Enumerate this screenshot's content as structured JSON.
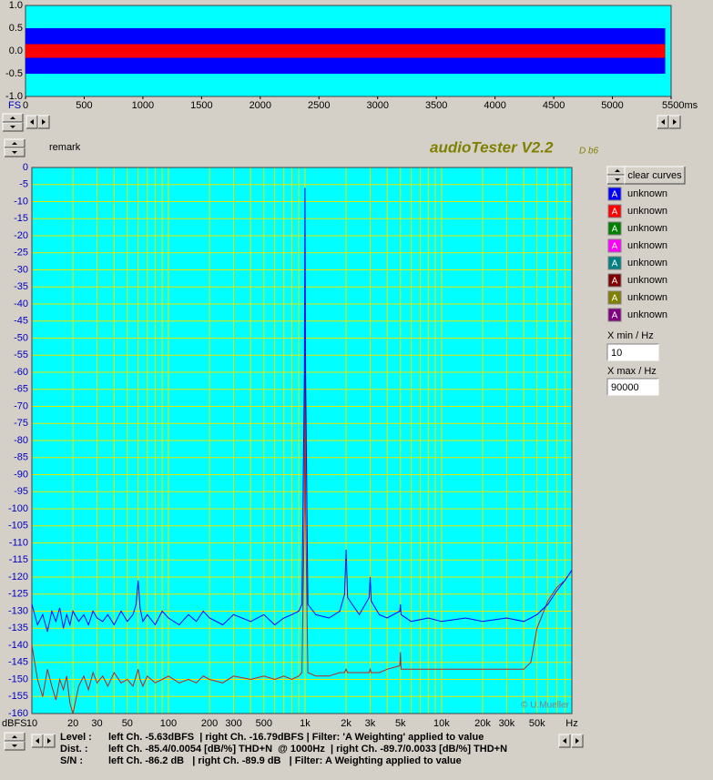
{
  "chart_data": [
    {
      "type": "band",
      "x_label": "FS",
      "background": "#00ffff",
      "x": [
        0,
        5450
      ],
      "series": [
        {
          "color": "#0000ff",
          "high": [
            0.5,
            0.5
          ],
          "low": [
            -0.5,
            -0.5
          ]
        },
        {
          "color": "#ff0000",
          "high": [
            0.15,
            0.15
          ],
          "low": [
            -0.15,
            -0.15
          ]
        }
      ],
      "xlim": [
        0,
        5500
      ],
      "ylim": [
        -1,
        1
      ],
      "xticks": [
        0,
        500,
        1000,
        1500,
        2000,
        2500,
        3000,
        3500,
        4000,
        4500,
        5000,
        {
          "value": 5500,
          "label": "5500ms"
        }
      ],
      "yticks": [
        {
          "value": 1,
          "label": "1.0"
        },
        0.5,
        {
          "value": 0,
          "label": "0.0"
        },
        -0.5,
        {
          "value": -1,
          "label": "-1.0"
        }
      ]
    },
    {
      "type": "line",
      "y_label": "dBFS",
      "x_label": "Hz",
      "annotation": "© U.Mueller",
      "background": "#00ffff",
      "log_x": true,
      "grid": true,
      "grid_color": "#e6e600",
      "x": [
        10,
        11,
        12,
        13,
        14,
        15,
        16,
        17,
        18,
        19,
        20,
        22,
        24,
        26,
        28,
        30,
        33,
        36,
        40,
        45,
        50,
        55,
        58,
        60,
        62,
        65,
        70,
        80,
        90,
        100,
        120,
        140,
        160,
        180,
        200,
        250,
        300,
        400,
        500,
        600,
        700,
        800,
        900,
        950,
        990,
        1000,
        1010,
        1050,
        1200,
        1500,
        1800,
        1950,
        2000,
        2050,
        2500,
        2950,
        3000,
        3050,
        3500,
        4000,
        4950,
        5000,
        5050,
        6000,
        8000,
        10000,
        15000,
        20000,
        30000,
        40000,
        45000,
        50000,
        60000,
        70000,
        80000,
        90000
      ],
      "series": [
        {
          "color": "#0000ff",
          "values": [
            -128,
            -134,
            -131,
            -136,
            -130,
            -133,
            -129,
            -135,
            -131,
            -134,
            -130,
            -133,
            -131,
            -134,
            -130,
            -132,
            -133,
            -131,
            -134,
            -130,
            -133,
            -131,
            -128,
            -121,
            -129,
            -133,
            -131,
            -134,
            -130,
            -132,
            -134,
            -131,
            -133,
            -130,
            -132,
            -134,
            -131,
            -133,
            -131,
            -134,
            -132,
            -131,
            -130,
            -128,
            -60,
            -6,
            -60,
            -128,
            -131,
            -132,
            -130,
            -125,
            -112,
            -126,
            -131,
            -126,
            -120,
            -127,
            -131,
            -132,
            -130,
            -128,
            -131,
            -133,
            -132,
            -133,
            -132,
            -133,
            -132,
            -133,
            -132,
            -131,
            -128,
            -124,
            -121,
            -118
          ]
        },
        {
          "color": "#c02020",
          "values": [
            -140,
            -150,
            -155,
            -147,
            -152,
            -156,
            -150,
            -153,
            -149,
            -157,
            -160,
            -152,
            -149,
            -153,
            -148,
            -151,
            -149,
            -152,
            -148,
            -151,
            -150,
            -152,
            -149,
            -147,
            -150,
            -152,
            -149,
            -151,
            -150,
            -149,
            -151,
            -150,
            -151,
            -149,
            -150,
            -151,
            -149,
            -150,
            -149,
            -150,
            -149,
            -150,
            -149,
            -148,
            -100,
            -47,
            -100,
            -148,
            -149,
            -149,
            -148,
            -148,
            -147,
            -148,
            -148,
            -148,
            -147,
            -148,
            -148,
            -147,
            -146,
            -142,
            -147,
            -147,
            -147,
            -147,
            -147,
            -147,
            -147,
            -147,
            -145,
            -135,
            -127,
            -123,
            -121,
            -118
          ]
        }
      ],
      "xlim": [
        10,
        90000
      ],
      "ylim": [
        -160,
        0
      ],
      "xticks": [
        10,
        20,
        30,
        50,
        100,
        200,
        300,
        500,
        {
          "value": 1000,
          "label": "1k"
        },
        {
          "value": 2000,
          "label": "2k"
        },
        {
          "value": 3000,
          "label": "3k"
        },
        {
          "value": 5000,
          "label": "5k"
        },
        {
          "value": 10000,
          "label": "10k"
        },
        {
          "value": 20000,
          "label": "20k"
        },
        {
          "value": 30000,
          "label": "30k"
        },
        {
          "value": 50000,
          "label": "50k"
        }
      ],
      "xminor": [
        40,
        60,
        70,
        80,
        90,
        400,
        600,
        700,
        800,
        900,
        4000,
        6000,
        7000,
        8000,
        9000,
        40000,
        60000,
        70000,
        80000
      ],
      "yticks": [
        0,
        -5,
        -10,
        -15,
        -20,
        -25,
        -30,
        -35,
        -40,
        -45,
        -50,
        -55,
        -60,
        -65,
        -70,
        -75,
        -80,
        -85,
        -90,
        -95,
        -100,
        -105,
        -110,
        -115,
        -120,
        -125,
        -130,
        -135,
        -140,
        -145,
        -150,
        -155,
        -160
      ]
    }
  ],
  "remark": "remark",
  "app": {
    "name": "audioTester V2.2",
    "build": "D b6"
  },
  "clear_button": "clear curves",
  "curves": [
    {
      "letter": "A",
      "label": "unknown",
      "color": "#0000ff"
    },
    {
      "letter": "A",
      "label": "unknown",
      "color": "#ff0000"
    },
    {
      "letter": "A",
      "label": "unknown",
      "color": "#008000"
    },
    {
      "letter": "A",
      "label": "unknown",
      "color": "#ff00ff"
    },
    {
      "letter": "A",
      "label": "unknown",
      "color": "#008080"
    },
    {
      "letter": "A",
      "label": "unknown",
      "color": "#800000"
    },
    {
      "letter": "A",
      "label": "unknown",
      "color": "#808000"
    },
    {
      "letter": "A",
      "label": "unknown",
      "color": "#800080"
    }
  ],
  "xmin_label": "X min / Hz",
  "xmax_label": "X max / Hz",
  "status": [
    {
      "label": "Level :",
      "text": "left Ch. -5.63dBFS  | right Ch. -16.79dBFS | Filter: 'A Weighting' applied to value"
    },
    {
      "label": "Dist. :",
      "text": "left Ch. -85.4/0.0054 [dB/%] THD+N  @ 1000Hz  | right Ch. -89.7/0.0033 [dB/%] THD+N"
    },
    {
      "label": "S/N :",
      "text": "left Ch. -86.2 dB   | right Ch. -89.9 dB   | Filter: A Weighting applied to value"
    }
  ]
}
